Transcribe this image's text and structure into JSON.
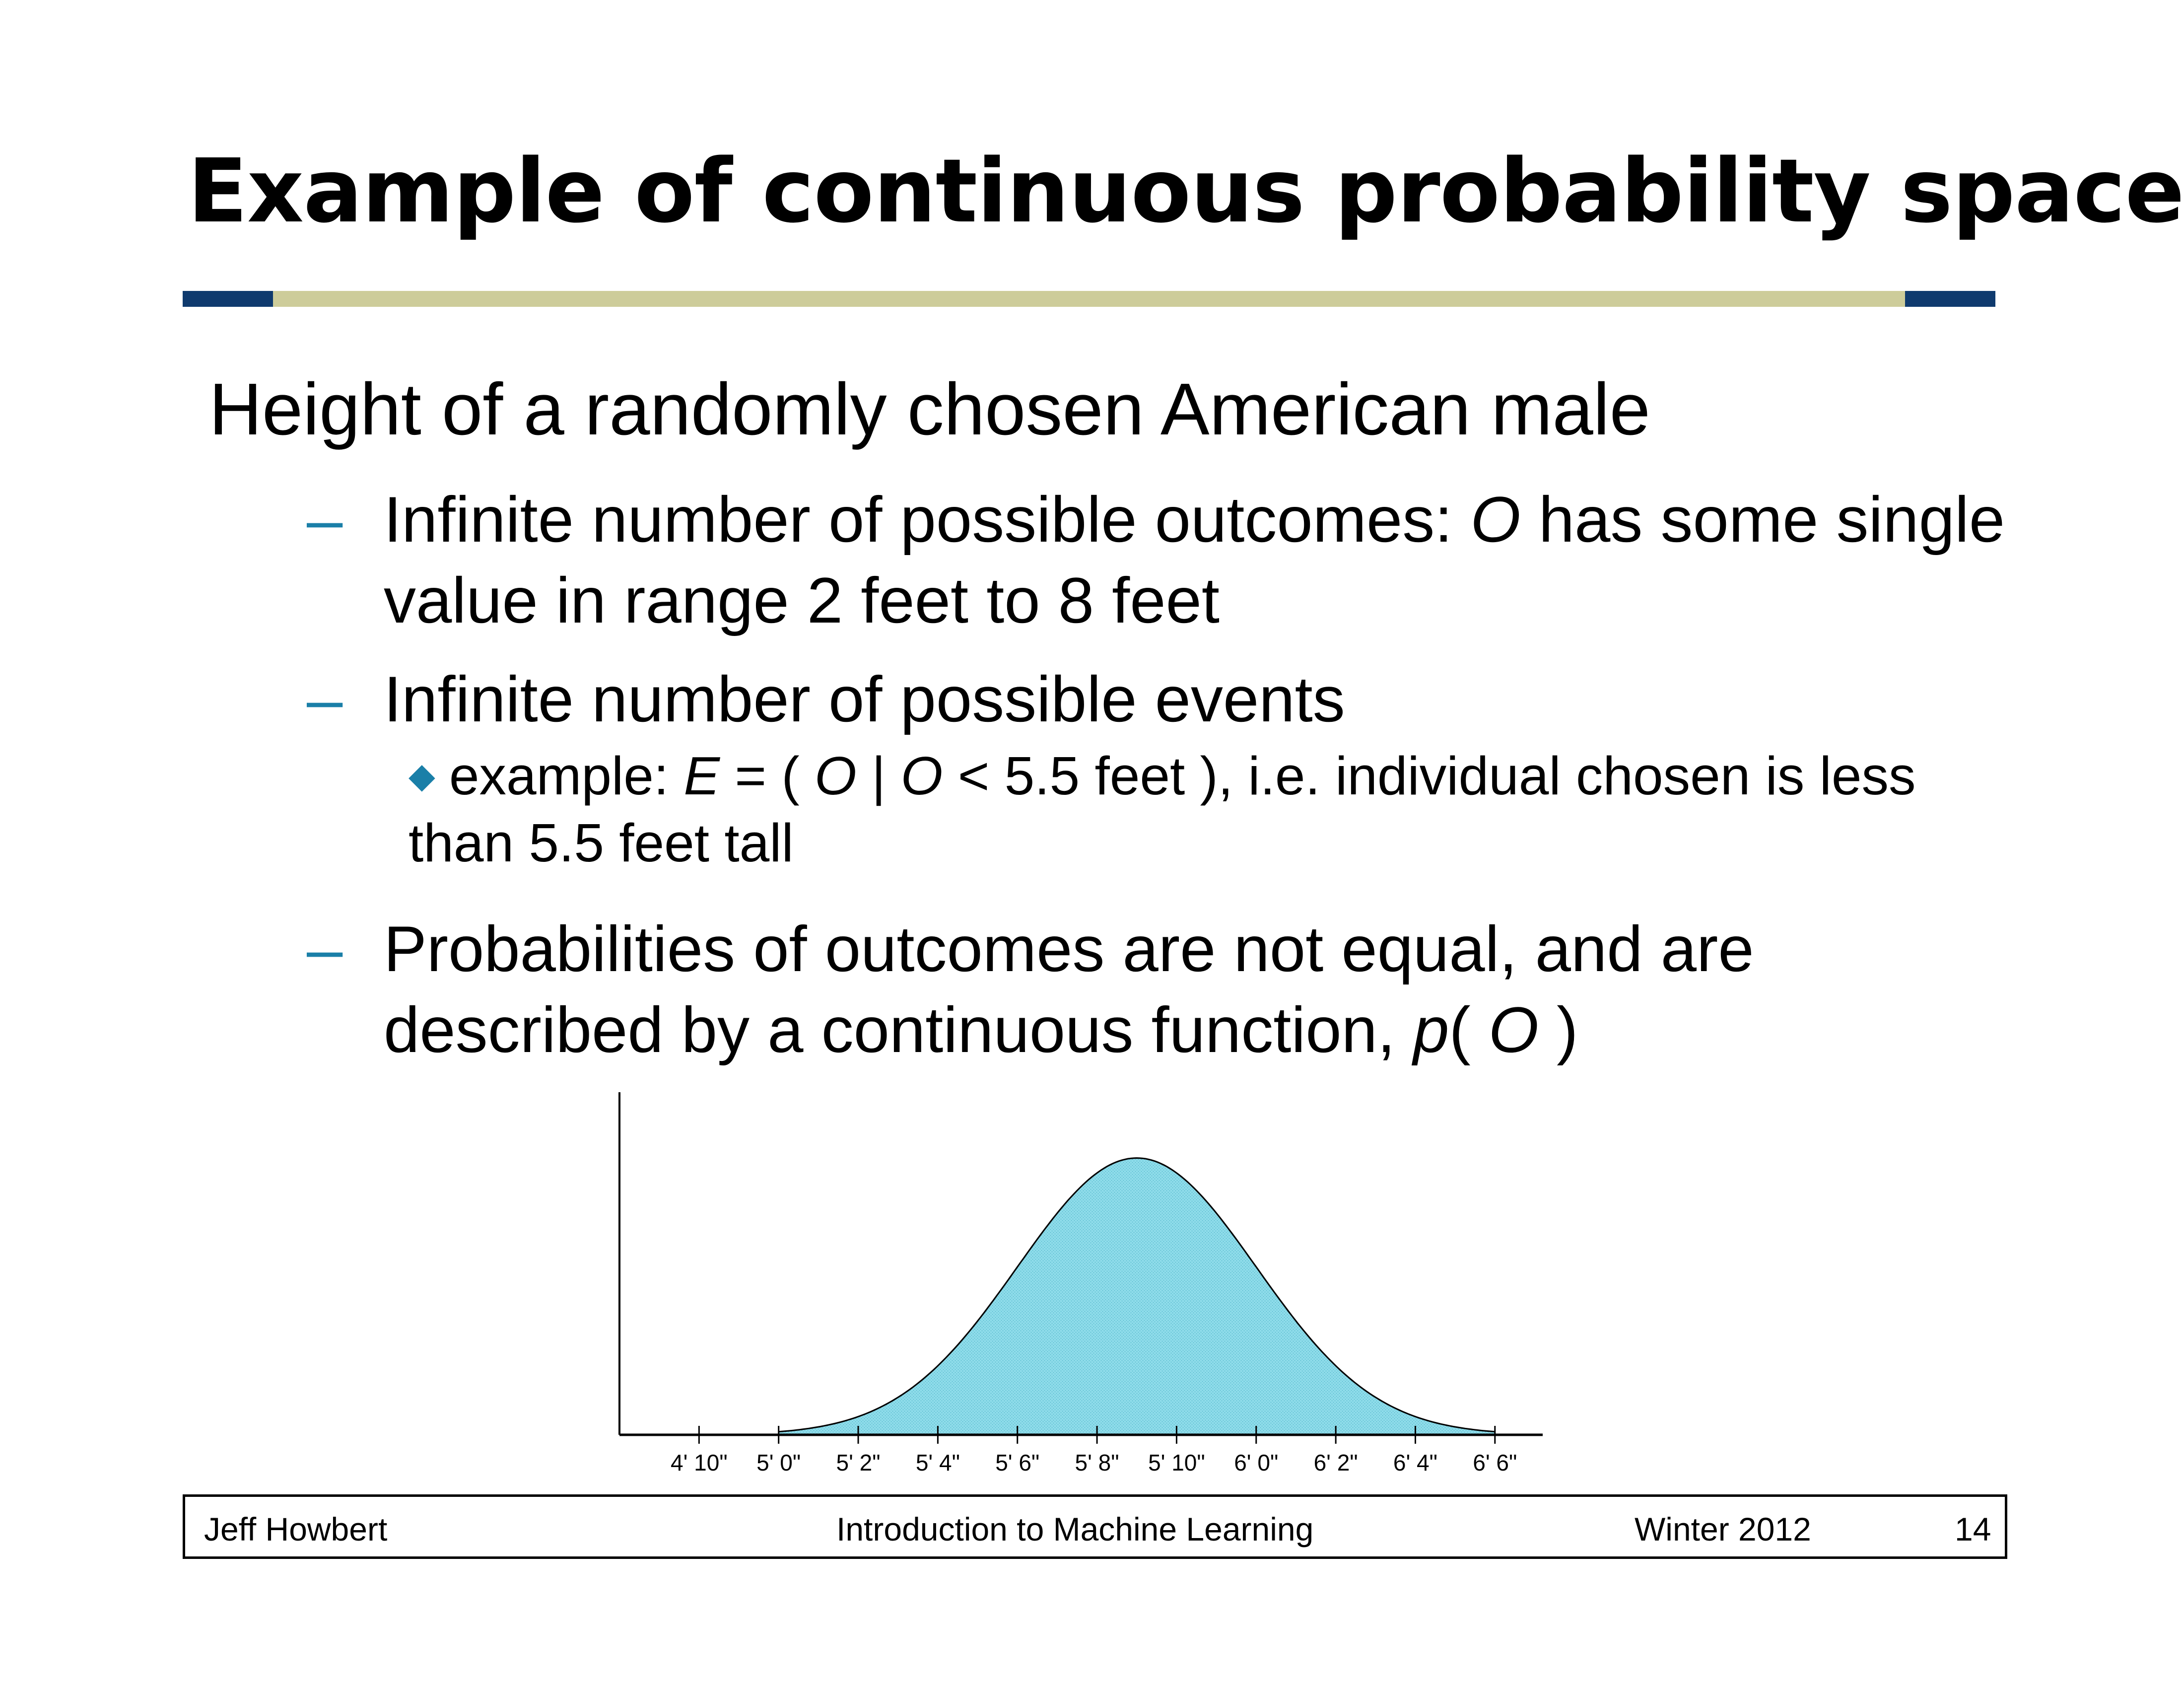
{
  "slide": {
    "title": "Example of continuous probability space",
    "heading": "Height of a randomly chosen American male",
    "bullets": [
      {
        "dash": "–",
        "pre": "Infinite number of possible outcomes: ",
        "italic": "O",
        "post": " has some single value in range 2 feet to 8 feet"
      },
      {
        "dash": "–",
        "text": "Infinite number of possible events"
      },
      {
        "dash": "–",
        "pre": "Probabilities of outcomes are not equal, and are described by a continuous function, ",
        "italic": "p",
        "mid": "( ",
        "italic2": "O",
        "post": " )"
      }
    ],
    "sub_bullet": {
      "pre": "example: ",
      "E": "E",
      "eq": " = ( ",
      "O1": "O",
      "bar": " | ",
      "O2": "O",
      "post": " < 5.5 feet ), i.e. individual chosen is less than 5.5 feet tall"
    }
  },
  "colors": {
    "rule_dark": "#0f3a6e",
    "rule_light": "#cdcc9a",
    "accent": "#1a7fa8",
    "fill": "#8fdcea",
    "curve": "#000000"
  },
  "icons": {
    "sub_bullet": "diamond-icon"
  },
  "chart_data": {
    "type": "area",
    "xlabel": "",
    "ylabel": "",
    "tick_labels": [
      "4' 10\"",
      "5' 0\"",
      "5' 2\"",
      "5' 4\"",
      "5' 6\"",
      "5' 8\"",
      "5' 10\"",
      "6' 0\"",
      "6' 2\"",
      "6' 4\"",
      "6' 6\""
    ],
    "tick_values_in": [
      58,
      60,
      62,
      64,
      66,
      68,
      70,
      72,
      74,
      76,
      78
    ],
    "xlim_in": [
      56,
      79.2
    ],
    "ylim": [
      0,
      1.13
    ],
    "distribution": {
      "kind": "normal",
      "mean_in": 69.0,
      "sd_in": 3.0
    },
    "curve_range_in": [
      60,
      78
    ]
  },
  "footer": {
    "author": "Jeff Howbert",
    "course": "Introduction to Machine Learning",
    "term": "Winter 2012",
    "page": "14"
  }
}
